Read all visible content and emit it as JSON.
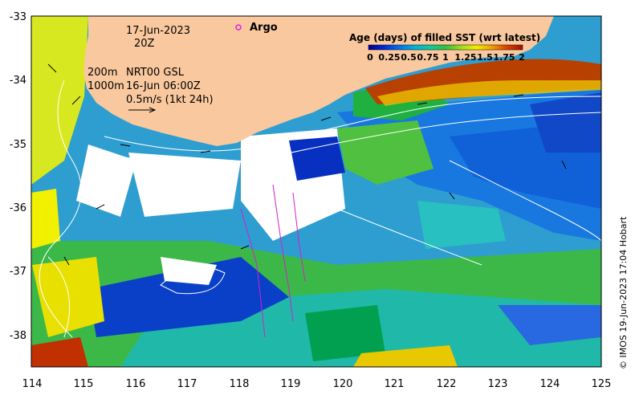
{
  "map": {
    "date_label": "17-Jun-2023",
    "time_label": "20Z",
    "argo_label": "Argo",
    "depth_200": "200m",
    "depth_1000": "1000m",
    "product": "NRT00 GSL",
    "product_time": "16-Jun 06:00Z",
    "velocity_scale": "0.5m/s (1kt 24h)",
    "colorbar_title": "Age (days) of filled SST (wrt latest)",
    "colorbar_ticks": [
      "0",
      "0.25",
      "0.5",
      "0.75",
      "1",
      "1.25",
      "1.5",
      "1.75",
      "2"
    ],
    "lon_ticks": [
      "114",
      "115",
      "116",
      "117",
      "118",
      "119",
      "120",
      "121",
      "122",
      "123",
      "124",
      "125"
    ],
    "lat_ticks": [
      "-33",
      "-34",
      "-35",
      "-36",
      "-37",
      "-38"
    ],
    "credit": "© IMOS 19-Jun-2023 17:04 Hobart",
    "colors": {
      "land": "#f9c89e",
      "argo_marker": "#e020e0",
      "colormap": [
        "#00008c",
        "#0028d8",
        "#0070f0",
        "#00b4d8",
        "#10c8a0",
        "#30c040",
        "#a0dc20",
        "#f0f000",
        "#f0a000",
        "#d84000",
        "#a01000"
      ]
    }
  }
}
